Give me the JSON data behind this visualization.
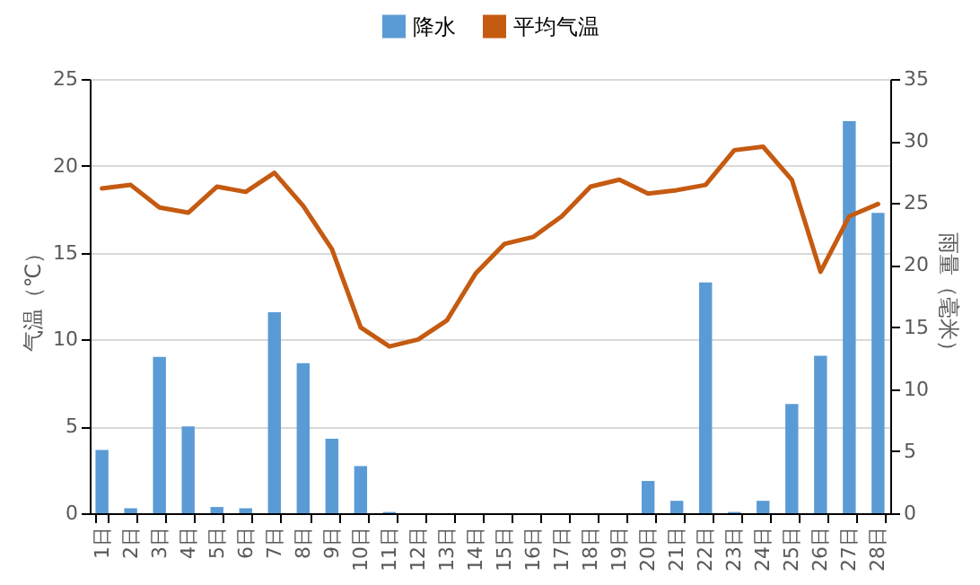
{
  "chart_data": {
    "type": "bar",
    "categories": [
      "1日",
      "2日",
      "3日",
      "4日",
      "5日",
      "6日",
      "7日",
      "8日",
      "9日",
      "10日",
      "11日",
      "12日",
      "13日",
      "14日",
      "15日",
      "16日",
      "17日",
      "18日",
      "19日",
      "20日",
      "21日",
      "22日",
      "23日",
      "24日",
      "25日",
      "26日",
      "27日",
      "28日"
    ],
    "series": [
      {
        "name": "降水",
        "axis": "y2",
        "color": "#5b9bd5",
        "values": [
          5.1,
          0.4,
          12.6,
          7.0,
          0.5,
          0.4,
          16.2,
          12.1,
          6.0,
          3.8,
          0.1,
          0,
          0,
          0,
          0,
          0,
          0,
          0,
          0,
          2.6,
          1.0,
          18.6,
          0.1,
          1.0,
          8.8,
          12.7,
          31.6,
          24.2
        ]
      },
      {
        "name": "平均气温",
        "type": "line",
        "color": "#c55a11",
        "values": [
          18.7,
          18.9,
          17.6,
          17.3,
          18.8,
          18.5,
          19.6,
          17.7,
          15.2,
          10.7,
          9.6,
          10.0,
          11.1,
          13.8,
          15.5,
          15.9,
          17.1,
          18.8,
          19.2,
          18.4,
          18.6,
          18.9,
          20.9,
          21.1,
          19.2,
          13.9,
          17.1,
          17.8
        ]
      }
    ],
    "ylabel": "气温（℃）",
    "y2label": "雨量（毫米）",
    "ylim": [
      0,
      25
    ],
    "yticks": [
      0,
      5,
      10,
      15,
      20,
      25
    ],
    "y2lim": [
      0,
      35
    ],
    "y2ticks": [
      0,
      5,
      10,
      15,
      20,
      25,
      30,
      35
    ],
    "grid": "y",
    "legend": "top"
  }
}
